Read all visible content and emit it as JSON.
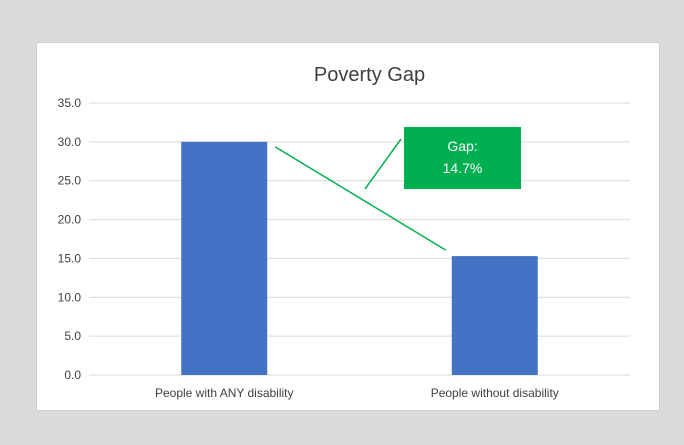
{
  "chart_data": {
    "type": "bar",
    "title": "Poverty Gap",
    "categories": [
      "People with ANY disability",
      "People without disability"
    ],
    "values": [
      30.0,
      15.3
    ],
    "ylim": [
      0,
      35
    ],
    "yticks": [
      "0.0",
      "5.0",
      "10.0",
      "15.0",
      "20.0",
      "25.0",
      "30.0",
      "35.0"
    ],
    "grid": true,
    "legend": "none",
    "bar_color": "#4472c4",
    "annotation": {
      "line1": "Gap:",
      "line2": "14.7%",
      "color": "#00b050"
    }
  }
}
